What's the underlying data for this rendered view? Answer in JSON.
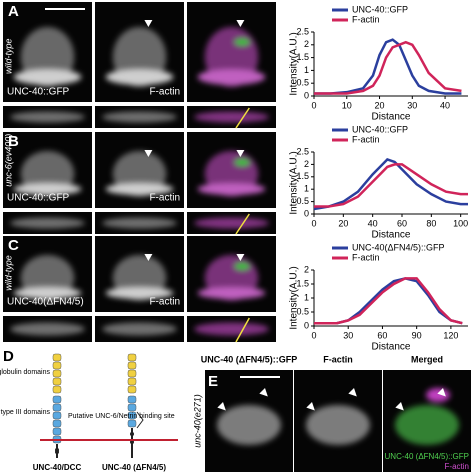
{
  "panel_letters": [
    "A",
    "B",
    "C",
    "D",
    "E"
  ],
  "row_labels": [
    "wild-type",
    "unc-6(ev400)",
    "wild-type"
  ],
  "image_labels": [
    [
      "UNC-40::GFP",
      "F-actin"
    ],
    [
      "UNC-40::GFP",
      "F-actin"
    ],
    [
      "UNC-40(ΔFN4/5)",
      "F-actin"
    ]
  ],
  "chart_data": [
    {
      "type": "line",
      "xlabel": "Distance",
      "ylabel": "Intensity(A.U.)",
      "x": [
        0,
        5,
        10,
        15,
        18,
        20,
        22,
        24,
        26,
        28,
        30,
        32,
        35,
        40,
        45
      ],
      "xlim": [
        0,
        47
      ],
      "xticks": [
        0,
        10,
        20,
        30,
        40
      ],
      "ylim": [
        0,
        2.5
      ],
      "yticks": [
        0,
        0.5,
        1,
        1.5,
        2,
        2.5
      ],
      "legend": "top-left",
      "series": [
        {
          "name": "UNC-40::GFP",
          "color": "#2b3f9e",
          "values": [
            0.1,
            0.1,
            0.15,
            0.3,
            0.8,
            1.6,
            2.1,
            2.2,
            2.0,
            1.4,
            0.8,
            0.4,
            0.2,
            0.1,
            0.1
          ]
        },
        {
          "name": "F-actin",
          "color": "#d0245a",
          "values": [
            0.1,
            0.1,
            0.1,
            0.2,
            0.4,
            0.8,
            1.5,
            1.9,
            2.0,
            2.1,
            2.0,
            1.6,
            0.9,
            0.3,
            0.2
          ]
        }
      ]
    },
    {
      "type": "line",
      "xlabel": "Distance",
      "ylabel": "Intensity(A.U.)",
      "x": [
        0,
        10,
        20,
        30,
        40,
        50,
        55,
        60,
        70,
        80,
        90,
        100,
        105
      ],
      "xlim": [
        0,
        105
      ],
      "xticks": [
        0,
        20,
        40,
        60,
        80,
        100
      ],
      "ylim": [
        0,
        2.5
      ],
      "yticks": [
        0,
        0.5,
        1,
        1.5,
        2,
        2.5
      ],
      "legend": "top-left",
      "series": [
        {
          "name": "UNC-40::GFP",
          "color": "#2b3f9e",
          "values": [
            0.2,
            0.3,
            0.5,
            0.9,
            1.6,
            2.2,
            2.1,
            1.8,
            1.2,
            0.8,
            0.5,
            0.4,
            0.4
          ]
        },
        {
          "name": "F-actin",
          "color": "#d0245a",
          "values": [
            0.3,
            0.3,
            0.4,
            0.7,
            1.3,
            1.9,
            2.0,
            2.0,
            1.6,
            1.2,
            0.9,
            0.8,
            0.8
          ]
        }
      ]
    },
    {
      "type": "line",
      "xlabel": "Distance",
      "ylabel": "Intensity(A.U.)",
      "x": [
        0,
        10,
        20,
        30,
        40,
        50,
        60,
        70,
        80,
        90,
        100,
        110,
        120,
        130
      ],
      "xlim": [
        0,
        135
      ],
      "xticks": [
        0,
        30,
        60,
        90,
        120
      ],
      "ylim": [
        0,
        2
      ],
      "yticks": [
        0,
        0.5,
        1,
        1.5,
        2
      ],
      "legend": "top-left",
      "series": [
        {
          "name": "UNC-40(ΔFN4/5)::GFP",
          "color": "#2b3f9e",
          "values": [
            0.1,
            0.1,
            0.1,
            0.2,
            0.5,
            0.9,
            1.3,
            1.6,
            1.7,
            1.6,
            1.1,
            0.5,
            0.2,
            0.1
          ]
        },
        {
          "name": "F-actin",
          "color": "#d0245a",
          "values": [
            0.1,
            0.1,
            0.1,
            0.2,
            0.4,
            0.8,
            1.2,
            1.5,
            1.7,
            1.7,
            1.2,
            0.6,
            0.2,
            0.1
          ]
        }
      ]
    }
  ],
  "diagram": {
    "labels": [
      "Immunoglobulin domains",
      "Fibronectin type III domains",
      "Putative UNC-6/Netrin binding site"
    ],
    "constructs": [
      "UNC-40/DCC",
      "UNC-40 (ΔFN4/5)"
    ]
  },
  "panel_e": {
    "row_label": "unc-40(e271)",
    "titles": [
      "UNC-40 (ΔFN4/5)::GFP",
      "F-actin",
      "Merged"
    ],
    "merge_labels": [
      "UNC-40 (ΔFN4/5)::GFP",
      "F-actin"
    ]
  }
}
